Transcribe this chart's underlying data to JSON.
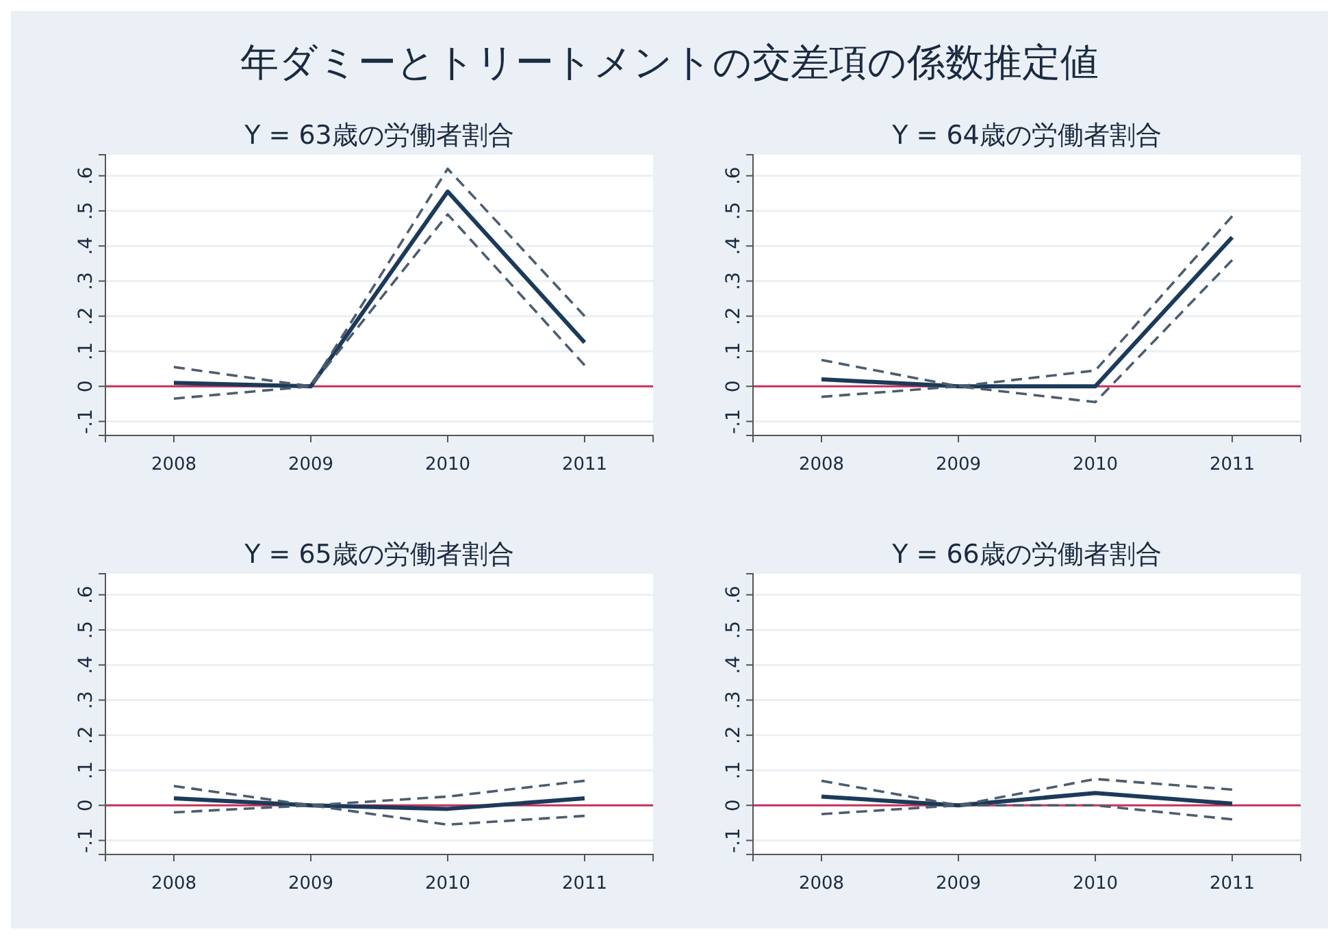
{
  "chart_data": [
    {
      "type": "other",
      "title": "年ダミーとトリートメントの交差項の係数推定値"
    },
    {
      "type": "line",
      "title": "Y = 63歳の労働者割合",
      "x": [
        2008,
        2009,
        2010,
        2011
      ],
      "xlim": [
        2007.5,
        2011.5
      ],
      "xticks": [
        2008,
        2009,
        2010,
        2011
      ],
      "ylim": [
        -0.14,
        0.66
      ],
      "yticks": [
        {
          "value": -0.1,
          "label": "-.1"
        },
        {
          "value": 0,
          "label": "0"
        },
        {
          "value": 0.1,
          "label": ".1"
        },
        {
          "value": 0.2,
          "label": ".2"
        },
        {
          "value": 0.3,
          "label": ".3"
        },
        {
          "value": 0.4,
          "label": ".4"
        },
        {
          "value": 0.5,
          "label": ".5"
        },
        {
          "value": 0.6,
          "label": ".6"
        }
      ],
      "grid": "y",
      "ref_lines": [
        {
          "axis": "y",
          "value": 0,
          "color": "#c8305a"
        }
      ],
      "series": [
        {
          "color": "#1c3a5a",
          "line_style": "solid",
          "values": [
            0.01,
            0,
            0.555,
            0.125
          ]
        },
        {
          "color": "#4d5d70",
          "line_style": "dashed",
          "values": [
            0.055,
            0,
            0.62,
            0.2
          ]
        },
        {
          "color": "#4d5d70",
          "line_style": "dashed",
          "values": [
            -0.035,
            0,
            0.49,
            0.06
          ]
        }
      ]
    },
    {
      "type": "line",
      "title": "Y = 64歳の労働者割合",
      "x": [
        2008,
        2009,
        2010,
        2011
      ],
      "xlim": [
        2007.5,
        2011.5
      ],
      "xticks": [
        2008,
        2009,
        2010,
        2011
      ],
      "ylim": [
        -0.14,
        0.66
      ],
      "yticks": [
        {
          "value": -0.1,
          "label": "-.1"
        },
        {
          "value": 0,
          "label": "0"
        },
        {
          "value": 0.1,
          "label": ".1"
        },
        {
          "value": 0.2,
          "label": ".2"
        },
        {
          "value": 0.3,
          "label": ".3"
        },
        {
          "value": 0.4,
          "label": ".4"
        },
        {
          "value": 0.5,
          "label": ".5"
        },
        {
          "value": 0.6,
          "label": ".6"
        }
      ],
      "grid": "y",
      "ref_lines": [
        {
          "axis": "y",
          "value": 0,
          "color": "#c8305a"
        }
      ],
      "series": [
        {
          "color": "#1c3a5a",
          "line_style": "solid",
          "values": [
            0.02,
            0,
            0,
            0.425
          ]
        },
        {
          "color": "#4d5d70",
          "line_style": "dashed",
          "values": [
            0.075,
            0,
            0.045,
            0.485
          ]
        },
        {
          "color": "#4d5d70",
          "line_style": "dashed",
          "values": [
            -0.03,
            0,
            -0.045,
            0.36
          ]
        }
      ]
    },
    {
      "type": "line",
      "title": "Y = 65歳の労働者割合",
      "x": [
        2008,
        2009,
        2010,
        2011
      ],
      "xlim": [
        2007.5,
        2011.5
      ],
      "xticks": [
        2008,
        2009,
        2010,
        2011
      ],
      "ylim": [
        -0.14,
        0.66
      ],
      "yticks": [
        {
          "value": -0.1,
          "label": "-.1"
        },
        {
          "value": 0,
          "label": "0"
        },
        {
          "value": 0.1,
          "label": ".1"
        },
        {
          "value": 0.2,
          "label": ".2"
        },
        {
          "value": 0.3,
          "label": ".3"
        },
        {
          "value": 0.4,
          "label": ".4"
        },
        {
          "value": 0.5,
          "label": ".5"
        },
        {
          "value": 0.6,
          "label": ".6"
        }
      ],
      "grid": "y",
      "ref_lines": [
        {
          "axis": "y",
          "value": 0,
          "color": "#c8305a"
        }
      ],
      "series": [
        {
          "color": "#1c3a5a",
          "line_style": "solid",
          "values": [
            0.02,
            0,
            -0.01,
            0.02
          ]
        },
        {
          "color": "#4d5d70",
          "line_style": "dashed",
          "values": [
            0.055,
            0,
            0.025,
            0.07
          ]
        },
        {
          "color": "#4d5d70",
          "line_style": "dashed",
          "values": [
            -0.02,
            0,
            -0.055,
            -0.03
          ]
        }
      ]
    },
    {
      "type": "line",
      "title": "Y = 66歳の労働者割合",
      "x": [
        2008,
        2009,
        2010,
        2011
      ],
      "xlim": [
        2007.5,
        2011.5
      ],
      "xticks": [
        2008,
        2009,
        2010,
        2011
      ],
      "ylim": [
        -0.14,
        0.66
      ],
      "yticks": [
        {
          "value": -0.1,
          "label": "-.1"
        },
        {
          "value": 0,
          "label": "0"
        },
        {
          "value": 0.1,
          "label": ".1"
        },
        {
          "value": 0.2,
          "label": ".2"
        },
        {
          "value": 0.3,
          "label": ".3"
        },
        {
          "value": 0.4,
          "label": ".4"
        },
        {
          "value": 0.5,
          "label": ".5"
        },
        {
          "value": 0.6,
          "label": ".6"
        }
      ],
      "grid": "y",
      "ref_lines": [
        {
          "axis": "y",
          "value": 0,
          "color": "#c8305a"
        }
      ],
      "series": [
        {
          "color": "#1c3a5a",
          "line_style": "solid",
          "values": [
            0.025,
            0,
            0.035,
            0.005
          ]
        },
        {
          "color": "#4d5d70",
          "line_style": "dashed",
          "values": [
            0.07,
            0,
            0.075,
            0.045
          ]
        },
        {
          "color": "#4d5d70",
          "line_style": "dashed",
          "values": [
            -0.025,
            0,
            0,
            -0.04
          ]
        }
      ]
    }
  ]
}
